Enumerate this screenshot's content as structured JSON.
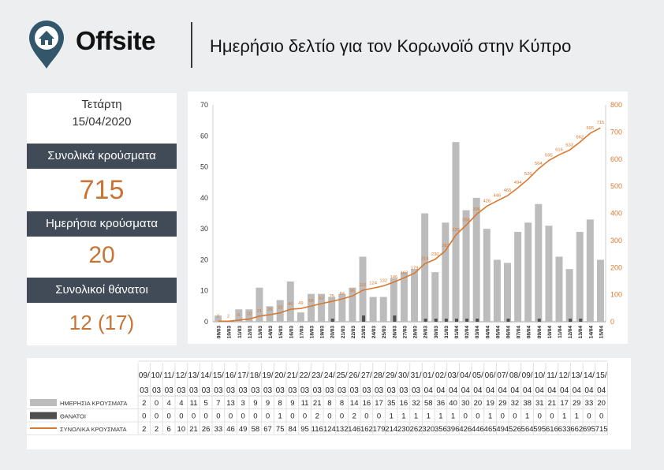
{
  "header": {
    "brand": "Offsite",
    "title": "Ημερήσιο δελτίο για τον Κορωνοϊό στην Κύπρο"
  },
  "summary": {
    "weekday": "Τετάρτη",
    "date": "15/04/2020",
    "total_cases_label": "Συνολικά κρούσματα",
    "total_cases": "715",
    "daily_cases_label": "Ημερήσια κρούσματα",
    "daily_cases": "20",
    "total_deaths_label": "Συνολικοί θάνατοι",
    "total_deaths": "12 (17)"
  },
  "colors": {
    "bar": "#bcbcbc",
    "deaths": "#4f4f4f",
    "line": "#d9782f",
    "header": "#404b57",
    "value": "#c77435",
    "pin": "#33566b"
  },
  "chart_data": {
    "type": "bar",
    "categories": [
      "09/03",
      "10/03",
      "11/03",
      "12/03",
      "13/03",
      "14/03",
      "15/03",
      "16/03",
      "17/03",
      "18/03",
      "19/03",
      "20/03",
      "21/03",
      "22/03",
      "23/03",
      "24/03",
      "25/03",
      "26/03",
      "27/03",
      "28/03",
      "29/03",
      "30/03",
      "31/03",
      "01/04",
      "02/04",
      "03/04",
      "04/04",
      "05/04",
      "06/04",
      "07/04",
      "08/04",
      "09/04",
      "10/04",
      "11/04",
      "12/04",
      "13/04",
      "14/04",
      "15/04"
    ],
    "table_dates": [
      [
        "09/",
        "03"
      ],
      [
        "10/",
        "03"
      ],
      [
        "11/",
        "03"
      ],
      [
        "12/",
        "03"
      ],
      [
        "13/",
        "03"
      ],
      [
        "14/",
        "03"
      ],
      [
        "15/",
        "03"
      ],
      [
        "16/",
        "03"
      ],
      [
        "17/",
        "03"
      ],
      [
        "18/",
        "03"
      ],
      [
        "19/",
        "03"
      ],
      [
        "20/",
        "03"
      ],
      [
        "21/",
        "03"
      ],
      [
        "22/",
        "03"
      ],
      [
        "23/",
        "03"
      ],
      [
        "24/",
        "03"
      ],
      [
        "25/",
        "03"
      ],
      [
        "26/",
        "03"
      ],
      [
        "27/",
        "03"
      ],
      [
        "28/",
        "03"
      ],
      [
        "29/",
        "03"
      ],
      [
        "30/",
        "03"
      ],
      [
        "31/",
        "03"
      ],
      [
        "01/",
        "04"
      ],
      [
        "02/",
        "04"
      ],
      [
        "03/",
        "04"
      ],
      [
        "04/",
        "04"
      ],
      [
        "05/",
        "04"
      ],
      [
        "06/",
        "04"
      ],
      [
        "07/",
        "04"
      ],
      [
        "08/",
        "04"
      ],
      [
        "09/",
        "04"
      ],
      [
        "10/",
        "04"
      ],
      [
        "11/",
        "04"
      ],
      [
        "12/",
        "04"
      ],
      [
        "13/",
        "04"
      ],
      [
        "14/",
        "04"
      ],
      [
        "15/",
        "04"
      ]
    ],
    "series": [
      {
        "name": "ΗΜΕΡΗΣΙΑ ΚΡΟΥΣΜΑΤΑ",
        "type": "bar",
        "axis": "left",
        "values": [
          2,
          0,
          4,
          4,
          11,
          5,
          7,
          13,
          3,
          9,
          9,
          8,
          9,
          11,
          21,
          8,
          8,
          14,
          16,
          17,
          35,
          16,
          32,
          58,
          36,
          40,
          30,
          20,
          19,
          29,
          32,
          38,
          31,
          21,
          17,
          29,
          33,
          20
        ]
      },
      {
        "name": "ΘΑΝΑΤΟΙ",
        "type": "bar",
        "axis": "left",
        "values": [
          0,
          0,
          0,
          0,
          0,
          0,
          0,
          0,
          0,
          0,
          0,
          1,
          0,
          0,
          2,
          0,
          0,
          2,
          0,
          0,
          1,
          1,
          1,
          1,
          1,
          1,
          0,
          0,
          1,
          0,
          0,
          1,
          0,
          0,
          1,
          1,
          0,
          0
        ]
      },
      {
        "name": "ΣΥΝΟΛΙΚΑ ΚΡΟΥΣΜΑΤΑ",
        "type": "line",
        "axis": "right",
        "values": [
          2,
          2,
          6,
          10,
          21,
          26,
          33,
          46,
          49,
          58,
          67,
          75,
          84,
          95,
          116,
          124,
          132,
          146,
          162,
          179,
          214,
          230,
          262,
          320,
          356,
          396,
          426,
          446,
          465,
          494,
          526,
          564,
          595,
          616,
          633,
          662,
          695,
          715
        ]
      }
    ],
    "line_labels": [
      "2",
      "2",
      "6",
      "10",
      "21",
      "26",
      "33",
      "46",
      "49",
      "58",
      "67",
      "75",
      "84",
      "95",
      "116",
      "124",
      "132",
      "146",
      "162",
      "179",
      "214",
      "230",
      "262",
      "320",
      "356",
      "396",
      "426",
      "446",
      "465",
      "494",
      "526",
      "564",
      "595",
      "616",
      "633",
      "662",
      "695",
      "715"
    ],
    "ylim_left": [
      0,
      70
    ],
    "yticks_left": [
      "0",
      "10",
      "20",
      "30",
      "40",
      "50",
      "60",
      "70"
    ],
    "ylim_right": [
      0,
      800
    ],
    "yticks_right": [
      "0",
      "100",
      "200",
      "300",
      "400",
      "500",
      "600",
      "700",
      "800"
    ]
  }
}
